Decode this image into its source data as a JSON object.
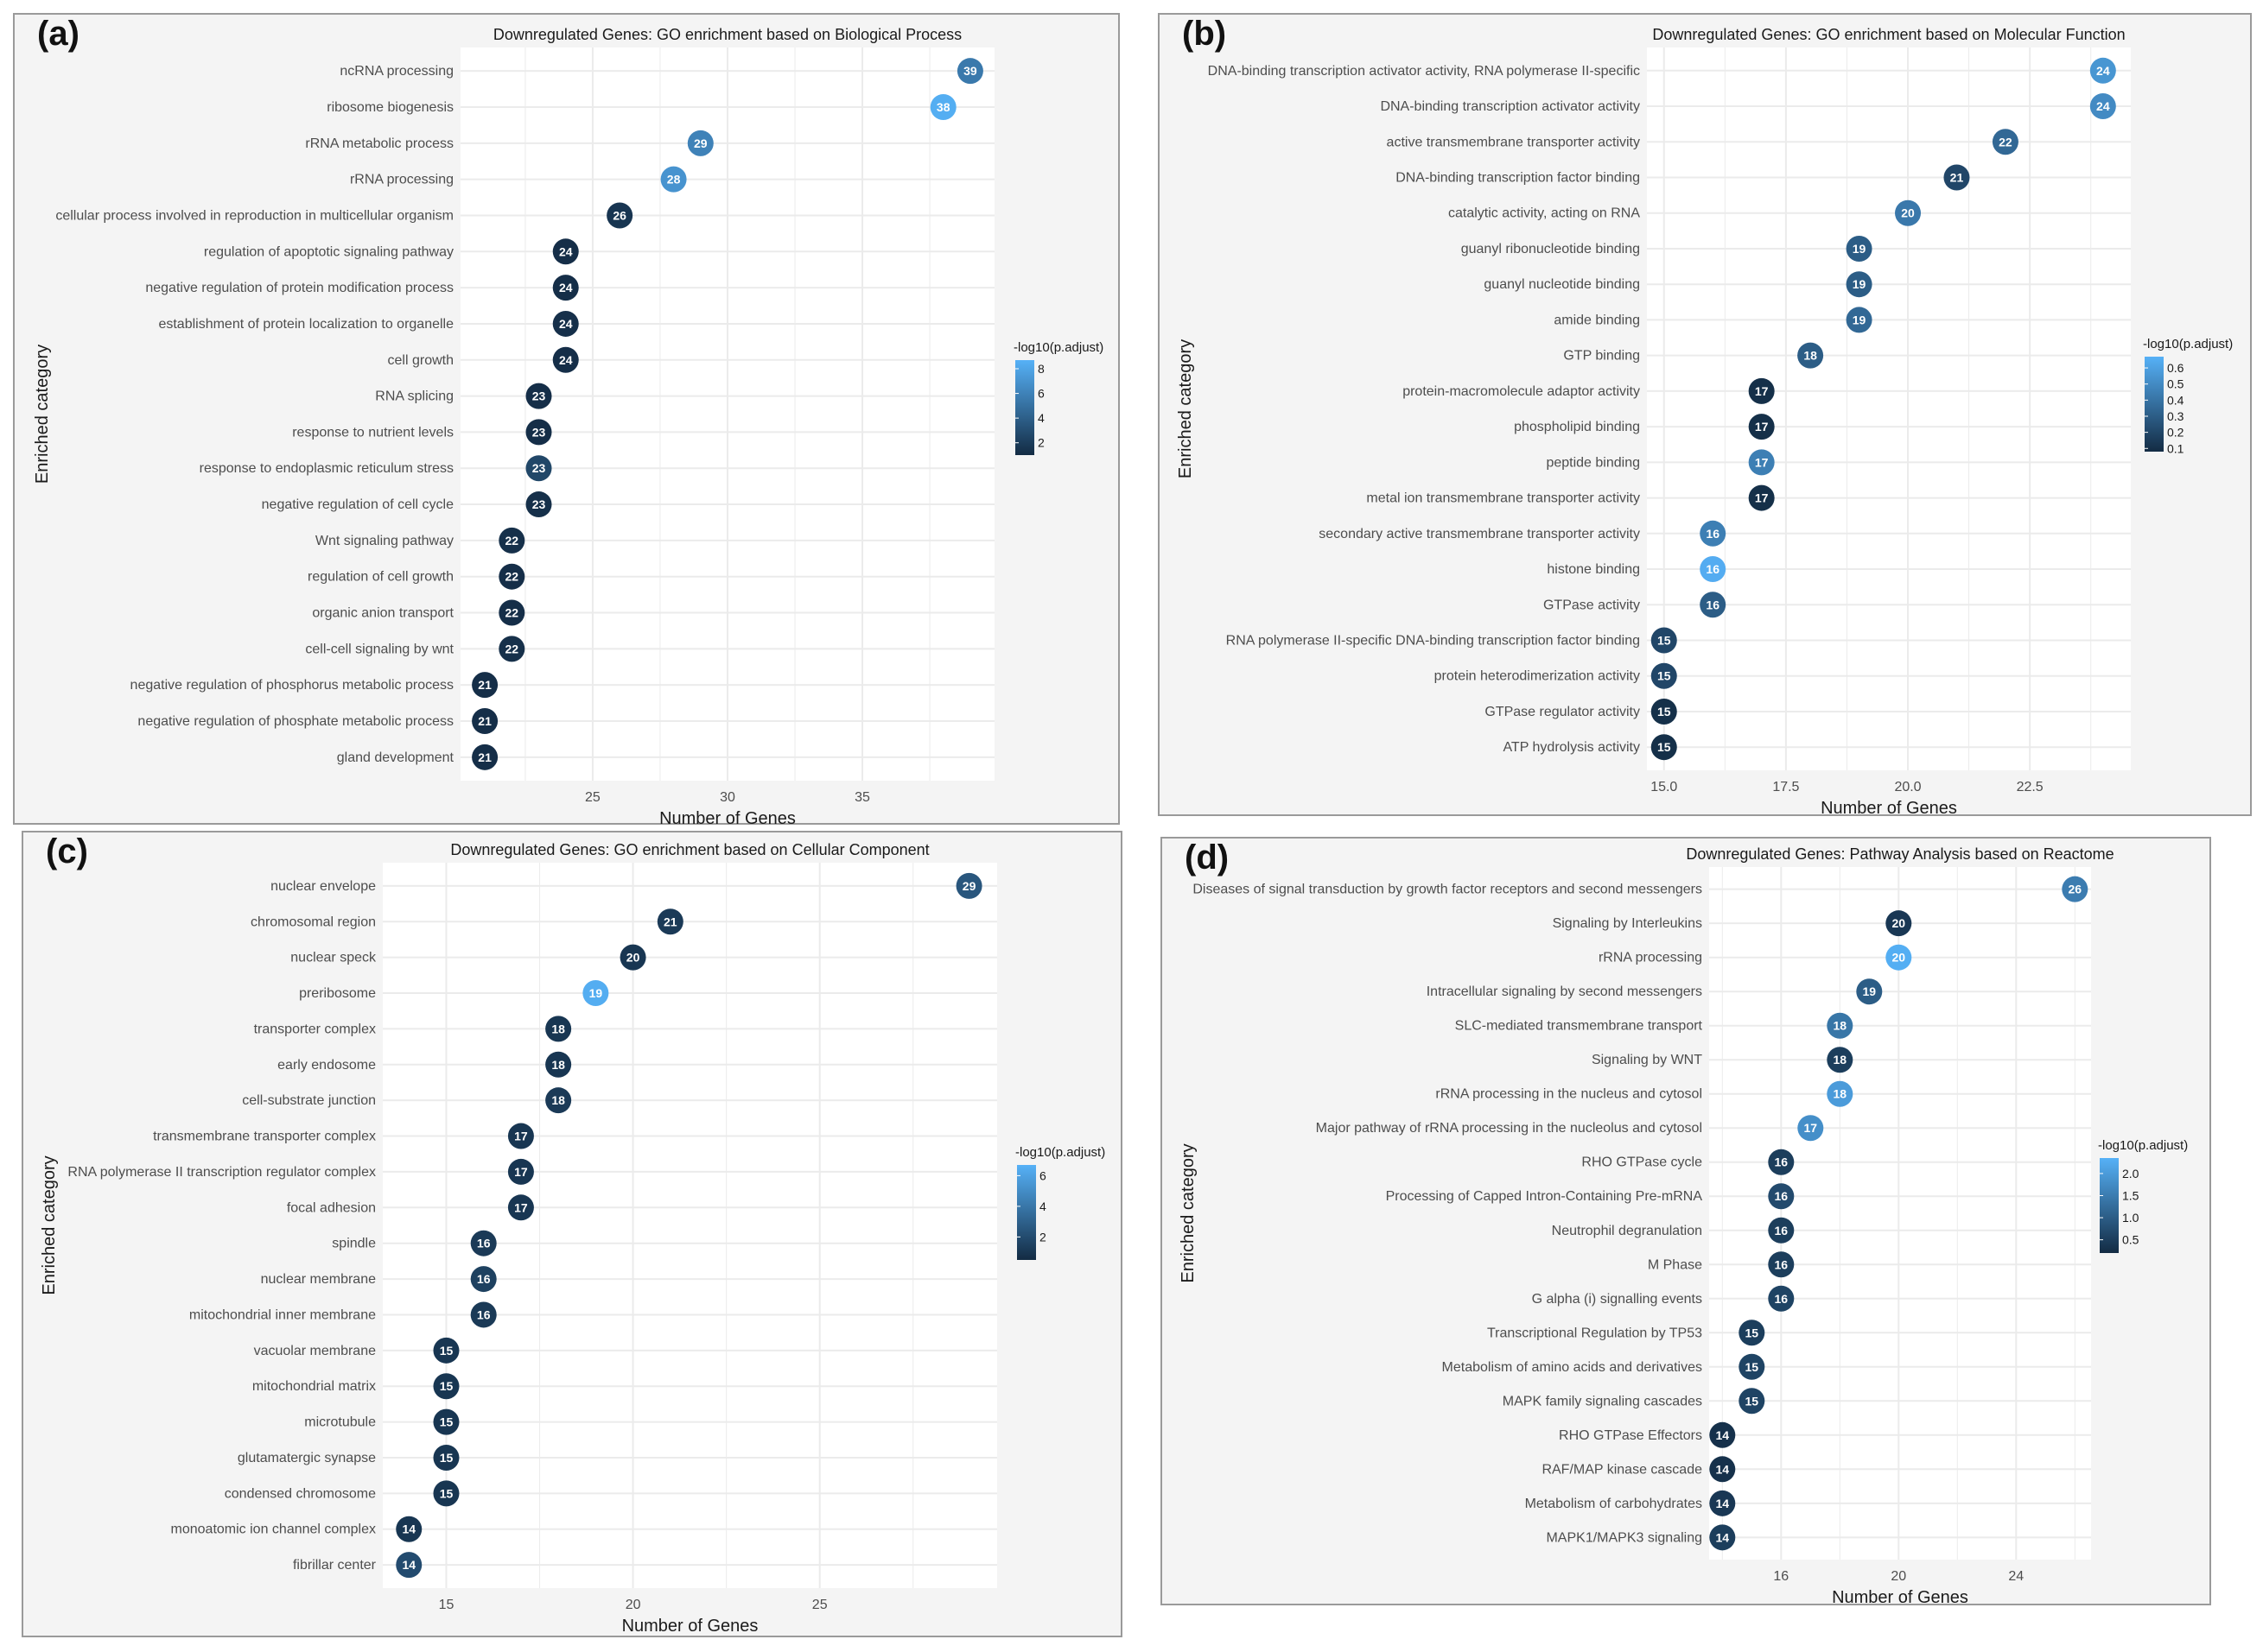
{
  "chart_data": [
    {
      "id": "a",
      "panel_label": "(a)",
      "type": "scatter",
      "title": "Downregulated Genes: GO enrichment based on Biological Process",
      "xlabel": "Number of Genes",
      "ylabel": "Enriched category",
      "xticks": [
        25,
        30,
        35
      ],
      "xlim": [
        20.1,
        39.9
      ],
      "legend_title": "-log10(p.adjust)",
      "legend_breaks": [
        2,
        4,
        6,
        8
      ],
      "color_range": [
        1,
        8.7
      ],
      "color_low": "#132B43",
      "color_high": "#56B1F7",
      "points": [
        {
          "category": "ncRNA processing",
          "genes": 39,
          "neglog10_padj": 5.5
        },
        {
          "category": "ribosome biogenesis",
          "genes": 38,
          "neglog10_padj": 8.5
        },
        {
          "category": "rRNA metabolic process",
          "genes": 29,
          "neglog10_padj": 6.0
        },
        {
          "category": "rRNA processing",
          "genes": 28,
          "neglog10_padj": 7.0
        },
        {
          "category": "cellular process involved in reproduction in multicellular organism",
          "genes": 26,
          "neglog10_padj": 1.6
        },
        {
          "category": "regulation of apoptotic signaling pathway",
          "genes": 24,
          "neglog10_padj": 1.2
        },
        {
          "category": "negative regulation of protein modification process",
          "genes": 24,
          "neglog10_padj": 1.2
        },
        {
          "category": "establishment of protein localization to organelle",
          "genes": 24,
          "neglog10_padj": 1.3
        },
        {
          "category": "cell growth",
          "genes": 24,
          "neglog10_padj": 1.2
        },
        {
          "category": "RNA splicing",
          "genes": 23,
          "neglog10_padj": 1.2
        },
        {
          "category": "response to nutrient levels",
          "genes": 23,
          "neglog10_padj": 1.2
        },
        {
          "category": "response to endoplasmic reticulum stress",
          "genes": 23,
          "neglog10_padj": 2.6
        },
        {
          "category": "negative regulation of cell cycle",
          "genes": 23,
          "neglog10_padj": 1.3
        },
        {
          "category": "Wnt signaling pathway",
          "genes": 22,
          "neglog10_padj": 1.3
        },
        {
          "category": "regulation of cell growth",
          "genes": 22,
          "neglog10_padj": 1.2
        },
        {
          "category": "organic anion transport",
          "genes": 22,
          "neglog10_padj": 1.2
        },
        {
          "category": "cell-cell signaling by wnt",
          "genes": 22,
          "neglog10_padj": 1.3
        },
        {
          "category": "negative regulation of phosphorus metabolic process",
          "genes": 21,
          "neglog10_padj": 1.2
        },
        {
          "category": "negative regulation of phosphate metabolic process",
          "genes": 21,
          "neglog10_padj": 1.2
        },
        {
          "category": "gland development",
          "genes": 21,
          "neglog10_padj": 1.2
        }
      ]
    },
    {
      "id": "b",
      "panel_label": "(b)",
      "type": "scatter",
      "title": "Downregulated Genes: GO enrichment based on Molecular Function",
      "xlabel": "Number of Genes",
      "ylabel": "Enriched category",
      "xticks": [
        15.0,
        17.5,
        20.0,
        22.5
      ],
      "xlim": [
        14.65,
        24.57
      ],
      "legend_title": "-log10(p.adjust)",
      "legend_breaks": [
        0.1,
        0.2,
        0.3,
        0.4,
        0.5,
        0.6
      ],
      "color_range": [
        0.08,
        0.67
      ],
      "color_low": "#132B43",
      "color_high": "#56B1F7",
      "points": [
        {
          "category": "DNA-binding transcription activator activity, RNA polymerase II-specific",
          "genes": 24,
          "neglog10_padj": 0.55
        },
        {
          "category": "DNA-binding transcription activator activity",
          "genes": 24,
          "neglog10_padj": 0.5
        },
        {
          "category": "active transmembrane transporter activity",
          "genes": 22,
          "neglog10_padj": 0.35
        },
        {
          "category": "DNA-binding transcription factor binding",
          "genes": 21,
          "neglog10_padj": 0.2
        },
        {
          "category": "catalytic activity, acting on RNA",
          "genes": 20,
          "neglog10_padj": 0.42
        },
        {
          "category": "guanyl ribonucleotide binding",
          "genes": 19,
          "neglog10_padj": 0.3
        },
        {
          "category": "guanyl nucleotide binding",
          "genes": 19,
          "neglog10_padj": 0.3
        },
        {
          "category": "amide binding",
          "genes": 19,
          "neglog10_padj": 0.35
        },
        {
          "category": "GTP binding",
          "genes": 18,
          "neglog10_padj": 0.3
        },
        {
          "category": "protein-macromolecule adaptor activity",
          "genes": 17,
          "neglog10_padj": 0.1
        },
        {
          "category": "phospholipid binding",
          "genes": 17,
          "neglog10_padj": 0.1
        },
        {
          "category": "peptide binding",
          "genes": 17,
          "neglog10_padj": 0.45
        },
        {
          "category": "metal ion transmembrane transporter activity",
          "genes": 17,
          "neglog10_padj": 0.1
        },
        {
          "category": "secondary active transmembrane transporter activity",
          "genes": 16,
          "neglog10_padj": 0.45
        },
        {
          "category": "histone binding",
          "genes": 16,
          "neglog10_padj": 0.65
        },
        {
          "category": "GTPase activity",
          "genes": 16,
          "neglog10_padj": 0.3
        },
        {
          "category": "RNA polymerase II-specific DNA-binding transcription factor binding",
          "genes": 15,
          "neglog10_padj": 0.2
        },
        {
          "category": "protein heterodimerization activity",
          "genes": 15,
          "neglog10_padj": 0.2
        },
        {
          "category": "GTPase regulator activity",
          "genes": 15,
          "neglog10_padj": 0.1
        },
        {
          "category": "ATP hydrolysis activity",
          "genes": 15,
          "neglog10_padj": 0.1
        }
      ]
    },
    {
      "id": "c",
      "panel_label": "(c)",
      "type": "scatter",
      "title": "Downregulated Genes: GO enrichment based on Cellular Component",
      "xlabel": "Number of Genes",
      "ylabel": "Enriched category",
      "xticks": [
        15,
        20,
        25
      ],
      "xlim": [
        13.3,
        29.75
      ],
      "legend_title": "-log10(p.adjust)",
      "legend_breaks": [
        2,
        4,
        6
      ],
      "color_range": [
        0.5,
        6.7
      ],
      "color_low": "#132B43",
      "color_high": "#56B1F7",
      "points": [
        {
          "category": "nuclear envelope",
          "genes": 29,
          "neglog10_padj": 2.5
        },
        {
          "category": "chromosomal region",
          "genes": 21,
          "neglog10_padj": 1.2
        },
        {
          "category": "nuclear speck",
          "genes": 20,
          "neglog10_padj": 1.0
        },
        {
          "category": "preribosome",
          "genes": 19,
          "neglog10_padj": 6.5
        },
        {
          "category": "transporter complex",
          "genes": 18,
          "neglog10_padj": 1.0
        },
        {
          "category": "early endosome",
          "genes": 18,
          "neglog10_padj": 1.0
        },
        {
          "category": "cell-substrate junction",
          "genes": 18,
          "neglog10_padj": 1.2
        },
        {
          "category": "transmembrane transporter complex",
          "genes": 17,
          "neglog10_padj": 1.0
        },
        {
          "category": "RNA polymerase II transcription regulator complex",
          "genes": 17,
          "neglog10_padj": 1.0
        },
        {
          "category": "focal adhesion",
          "genes": 17,
          "neglog10_padj": 1.0
        },
        {
          "category": "spindle",
          "genes": 16,
          "neglog10_padj": 1.2
        },
        {
          "category": "nuclear membrane",
          "genes": 16,
          "neglog10_padj": 1.5
        },
        {
          "category": "mitochondrial inner membrane",
          "genes": 16,
          "neglog10_padj": 1.2
        },
        {
          "category": "vacuolar membrane",
          "genes": 15,
          "neglog10_padj": 1.0
        },
        {
          "category": "mitochondrial matrix",
          "genes": 15,
          "neglog10_padj": 1.0
        },
        {
          "category": "microtubule",
          "genes": 15,
          "neglog10_padj": 1.0
        },
        {
          "category": "glutamatergic synapse",
          "genes": 15,
          "neglog10_padj": 1.0
        },
        {
          "category": "condensed chromosome",
          "genes": 15,
          "neglog10_padj": 1.0
        },
        {
          "category": "monoatomic ion channel complex",
          "genes": 14,
          "neglog10_padj": 1.0
        },
        {
          "category": "fibrillar center",
          "genes": 14,
          "neglog10_padj": 2.0
        }
      ]
    },
    {
      "id": "d",
      "panel_label": "(d)",
      "type": "scatter",
      "title": "Downregulated Genes: Pathway Analysis based on Reactome",
      "xlabel": "Number of Genes",
      "ylabel": "Enriched category",
      "xticks": [
        16,
        20,
        24
      ],
      "xlim": [
        13.55,
        26.55
      ],
      "legend_title": "-log10(p.adjust)",
      "legend_breaks": [
        0.5,
        1.0,
        1.5,
        2.0
      ],
      "color_range": [
        0.2,
        2.35
      ],
      "color_low": "#132B43",
      "color_high": "#56B1F7",
      "points": [
        {
          "category": "Diseases of signal transduction by growth factor receptors and second messengers",
          "genes": 26,
          "neglog10_padj": 1.5
        },
        {
          "category": "Signaling by Interleukins",
          "genes": 20,
          "neglog10_padj": 0.4
        },
        {
          "category": "rRNA processing",
          "genes": 20,
          "neglog10_padj": 2.3
        },
        {
          "category": "Intracellular signaling by second messengers",
          "genes": 19,
          "neglog10_padj": 1.0
        },
        {
          "category": "SLC-mediated transmembrane transport",
          "genes": 18,
          "neglog10_padj": 1.4
        },
        {
          "category": "Signaling by WNT",
          "genes": 18,
          "neglog10_padj": 0.5
        },
        {
          "category": "rRNA processing in the nucleus and cytosol",
          "genes": 18,
          "neglog10_padj": 2.0
        },
        {
          "category": "Major pathway of rRNA processing in the nucleolus and cytosol",
          "genes": 17,
          "neglog10_padj": 1.8
        },
        {
          "category": "RHO GTPase cycle",
          "genes": 16,
          "neglog10_padj": 0.5
        },
        {
          "category": "Processing of Capped Intron-Containing Pre-mRNA",
          "genes": 16,
          "neglog10_padj": 0.7
        },
        {
          "category": "Neutrophil degranulation",
          "genes": 16,
          "neglog10_padj": 0.5
        },
        {
          "category": "M Phase",
          "genes": 16,
          "neglog10_padj": 0.5
        },
        {
          "category": "G alpha (i) signalling events",
          "genes": 16,
          "neglog10_padj": 0.6
        },
        {
          "category": "Transcriptional Regulation by TP53",
          "genes": 15,
          "neglog10_padj": 0.5
        },
        {
          "category": "Metabolism of amino acids and derivatives",
          "genes": 15,
          "neglog10_padj": 0.6
        },
        {
          "category": "MAPK family signaling cascades",
          "genes": 15,
          "neglog10_padj": 0.6
        },
        {
          "category": "RHO GTPase Effectors",
          "genes": 14,
          "neglog10_padj": 0.3
        },
        {
          "category": "RAF/MAP kinase cascade",
          "genes": 14,
          "neglog10_padj": 0.3
        },
        {
          "category": "Metabolism of carbohydrates",
          "genes": 14,
          "neglog10_padj": 0.4
        },
        {
          "category": "MAPK1/MAPK3 signaling",
          "genes": 14,
          "neglog10_padj": 0.5
        }
      ]
    }
  ]
}
